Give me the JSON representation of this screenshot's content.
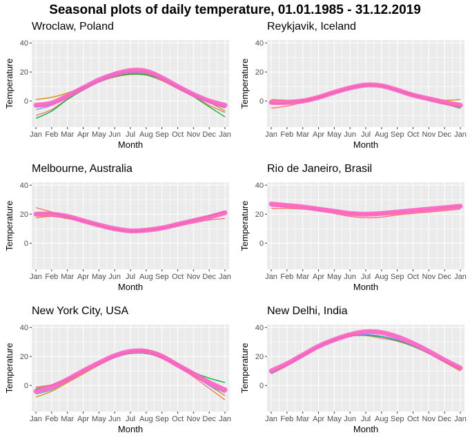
{
  "title": "Seasonal plots of daily temperature, 01.01.1985 - 31.12.2019",
  "colors": {
    "panel_background": "#ebebeb",
    "grid": "#ffffff",
    "series_palette": [
      "#F8766D",
      "#D39200",
      "#93AA00",
      "#00BA38",
      "#00C19F",
      "#00B9E3",
      "#619CFF",
      "#DB72FB",
      "#FF61C3"
    ],
    "dominant_series": "#FF61C3"
  },
  "chart_data": [
    {
      "type": "line",
      "title": "Wroclaw, Poland",
      "xlabel": "Month",
      "ylabel": "Temperature",
      "x_ticks": [
        "Jan",
        "Feb",
        "Mar",
        "Apr",
        "May",
        "Jun",
        "Jul",
        "Aug",
        "Sep",
        "Oct",
        "Nov",
        "Dec",
        "Jan"
      ],
      "y_ticks": [
        0,
        20,
        40
      ],
      "ylim": [
        -18,
        42
      ],
      "grid": true,
      "legend": "none",
      "series": [
        {
          "values": [
            -3,
            -1.5,
            3.5,
            9,
            14.5,
            18.5,
            21,
            20.5,
            16,
            10,
            4.5,
            0,
            -3
          ]
        },
        {
          "values": [
            -10,
            -6,
            1.5,
            8,
            13,
            16.5,
            18.2,
            17.8,
            14,
            8.5,
            3,
            -3,
            -8
          ]
        },
        {
          "values": [
            1,
            2.5,
            5.5,
            9.5,
            14,
            17.5,
            19,
            18.5,
            14.5,
            9,
            3.5,
            -1,
            -7
          ]
        },
        {
          "values": [
            -12,
            -7,
            1,
            7.5,
            13,
            16.8,
            18.5,
            18,
            14.5,
            9,
            3,
            -4,
            -11
          ]
        },
        {
          "values": [
            -6,
            -3,
            3,
            8.5,
            13.8,
            17.5,
            19.5,
            19,
            15,
            9.5,
            4,
            -1,
            -5
          ]
        },
        {
          "values": [
            -4,
            -2,
            3.5,
            9,
            14.5,
            18.5,
            20.5,
            20,
            15.5,
            10,
            4.5,
            -0.5,
            -4
          ]
        }
      ]
    },
    {
      "type": "line",
      "title": "Reykjavik, Iceland",
      "xlabel": "Month",
      "ylabel": "Temperature",
      "x_ticks": [
        "Jan",
        "Feb",
        "Mar",
        "Apr",
        "May",
        "Jun",
        "Jul",
        "Aug",
        "Sep",
        "Oct",
        "Nov",
        "Dec",
        "Jan"
      ],
      "y_ticks": [
        0,
        20,
        40
      ],
      "ylim": [
        -18,
        42
      ],
      "grid": true,
      "legend": "none",
      "series": [
        {
          "values": [
            -1,
            -1,
            0,
            2.5,
            6,
            9,
            11,
            10.5,
            7.5,
            4,
            1.5,
            -1,
            -3
          ]
        },
        {
          "values": [
            -5,
            -3.5,
            -1,
            2,
            5.5,
            8.5,
            10.5,
            10,
            7,
            3.5,
            1,
            -1.5,
            -4
          ]
        },
        {
          "values": [
            1,
            0.5,
            1,
            3,
            6,
            9,
            10.5,
            10.5,
            7.5,
            4.5,
            2,
            0.5,
            1
          ]
        },
        {
          "values": [
            -2,
            -1.5,
            0,
            2.5,
            6,
            9,
            11,
            10.5,
            7.5,
            4,
            1,
            -2,
            -5
          ]
        }
      ]
    },
    {
      "type": "line",
      "title": "Melbourne, Australia",
      "xlabel": "Month",
      "ylabel": "Temperature",
      "x_ticks": [
        "Jan",
        "Feb",
        "Mar",
        "Apr",
        "May",
        "Jun",
        "Jul",
        "Aug",
        "Sep",
        "Oct",
        "Nov",
        "Dec",
        "Jan"
      ],
      "y_ticks": [
        0,
        20,
        40
      ],
      "ylim": [
        -18,
        42
      ],
      "grid": true,
      "legend": "none",
      "series": [
        {
          "values": [
            20,
            20,
            18.5,
            15.5,
            12.5,
            10,
            8.5,
            9,
            10.5,
            13,
            15.5,
            18,
            21
          ]
        },
        {
          "values": [
            24.5,
            21.5,
            18,
            15,
            12,
            9.5,
            8,
            8.5,
            10,
            12,
            14,
            16,
            17
          ]
        },
        {
          "values": [
            17.5,
            18.5,
            17,
            15,
            12,
            9.5,
            8,
            8.5,
            10.5,
            13,
            15.5,
            18.5,
            22
          ]
        },
        {
          "values": [
            21,
            20.5,
            18.5,
            15.5,
            12.5,
            10,
            8.5,
            9,
            10.5,
            13,
            16,
            19,
            21.5
          ]
        }
      ]
    },
    {
      "type": "line",
      "title": "Rio de Janeiro, Brasil",
      "xlabel": "Month",
      "ylabel": "Temperature",
      "x_ticks": [
        "Jan",
        "Feb",
        "Mar",
        "Apr",
        "May",
        "Jun",
        "Jul",
        "Aug",
        "Sep",
        "Oct",
        "Nov",
        "Dec",
        "Jan"
      ],
      "y_ticks": [
        0,
        20,
        40
      ],
      "ylim": [
        -18,
        42
      ],
      "grid": true,
      "legend": "none",
      "series": [
        {
          "values": [
            27,
            26,
            25,
            23.5,
            22,
            20.5,
            20,
            20.5,
            21.5,
            22.5,
            23.5,
            24.5,
            25.5
          ]
        },
        {
          "values": [
            24,
            24,
            23.5,
            22.5,
            20.5,
            18.5,
            17.5,
            18,
            19.5,
            20.5,
            21.5,
            22.5,
            23.5
          ]
        },
        {
          "values": [
            25.5,
            25.5,
            25,
            23.5,
            22,
            20.5,
            20,
            20.5,
            21,
            22,
            23,
            24.5,
            25.5
          ]
        }
      ]
    },
    {
      "type": "line",
      "title": "New York City, USA",
      "xlabel": "Month",
      "ylabel": "Temperature",
      "x_ticks": [
        "Jan",
        "Feb",
        "Mar",
        "Apr",
        "May",
        "Jun",
        "Jul",
        "Aug",
        "Sep",
        "Oct",
        "Nov",
        "Dec",
        "Jan"
      ],
      "y_ticks": [
        0,
        20,
        40
      ],
      "ylim": [
        -18,
        42
      ],
      "grid": true,
      "legend": "none",
      "series": [
        {
          "values": [
            -4,
            -1,
            4,
            10,
            15.5,
            20.5,
            23.5,
            23.5,
            20,
            14,
            8,
            2,
            -3
          ]
        },
        {
          "values": [
            -1,
            0.5,
            4.5,
            10,
            15.5,
            20.5,
            23.5,
            23.5,
            20,
            13.5,
            6,
            -2,
            -10
          ]
        },
        {
          "values": [
            -8,
            -4,
            2,
            8,
            14,
            19.5,
            23,
            24.5,
            21.5,
            14.5,
            7.5,
            0,
            -7
          ]
        },
        {
          "values": [
            -2,
            0,
            4,
            9.5,
            15,
            19.5,
            22,
            22,
            19,
            14,
            9,
            5,
            2
          ]
        },
        {
          "values": [
            -6,
            -3,
            3,
            9.5,
            15,
            20,
            23,
            23,
            19.5,
            13.5,
            7,
            0,
            -5
          ]
        }
      ]
    },
    {
      "type": "line",
      "title": "New Delhi, India",
      "xlabel": "Month",
      "ylabel": "Temperature",
      "x_ticks": [
        "Jan",
        "Feb",
        "Mar",
        "Apr",
        "May",
        "Jun",
        "Jul",
        "Aug",
        "Sep",
        "Oct",
        "Nov",
        "Dec",
        "Jan"
      ],
      "y_ticks": [
        0,
        20,
        40
      ],
      "ylim": [
        -18,
        42
      ],
      "grid": true,
      "legend": "none",
      "series": [
        {
          "values": [
            10,
            15,
            21,
            27,
            31.5,
            35,
            37,
            36.5,
            33.5,
            29,
            23.5,
            17.5,
            12
          ]
        },
        {
          "values": [
            9,
            14.5,
            21,
            27,
            32,
            34.5,
            34.5,
            32.5,
            30.5,
            27,
            22.5,
            17,
            12
          ]
        },
        {
          "values": [
            8,
            13.5,
            20,
            26.5,
            31.5,
            35,
            35,
            33.5,
            31,
            27,
            22,
            16,
            10
          ]
        },
        {
          "values": [
            9,
            14.5,
            21,
            27,
            31.5,
            34,
            34.5,
            33.5,
            31,
            27,
            22,
            16.5,
            11
          ]
        },
        {
          "values": [
            8,
            14,
            20.5,
            26.5,
            31,
            34,
            35,
            34,
            31.5,
            27.5,
            22.5,
            17,
            12.5
          ]
        }
      ]
    }
  ]
}
